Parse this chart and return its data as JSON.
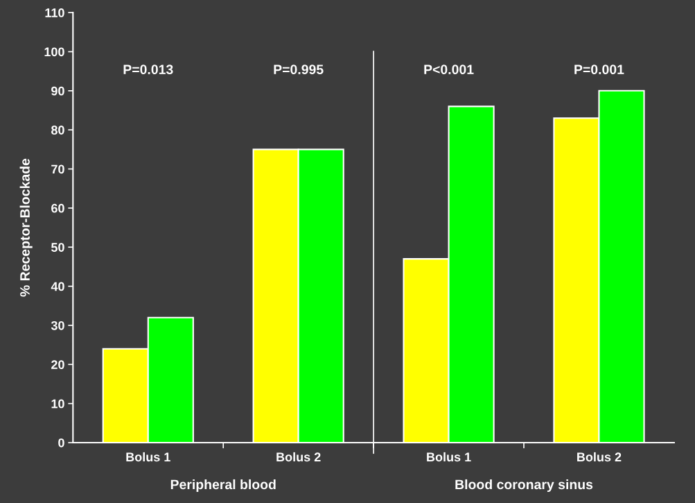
{
  "chart_data": {
    "type": "bar",
    "ylabel": "% Receptor-Blockade",
    "categories": [
      "Bolus 1",
      "Bolus 2",
      "Bolus 1",
      "Bolus 2"
    ],
    "series": [
      {
        "color": "#ffff00",
        "values": [
          24,
          75,
          47,
          83
        ]
      },
      {
        "color": "#00ff00",
        "values": [
          32,
          75,
          86,
          90
        ]
      }
    ],
    "ylim": [
      0,
      110
    ],
    "yticks": [
      0,
      10,
      20,
      30,
      40,
      50,
      60,
      70,
      80,
      90,
      100,
      110
    ],
    "annotations": [
      "P=0.013",
      "P=0.995",
      "P<0.001",
      "P=0.001",
      "Peripheral blood",
      "Blood coronary sinus"
    ],
    "grid": false,
    "legend": false
  }
}
